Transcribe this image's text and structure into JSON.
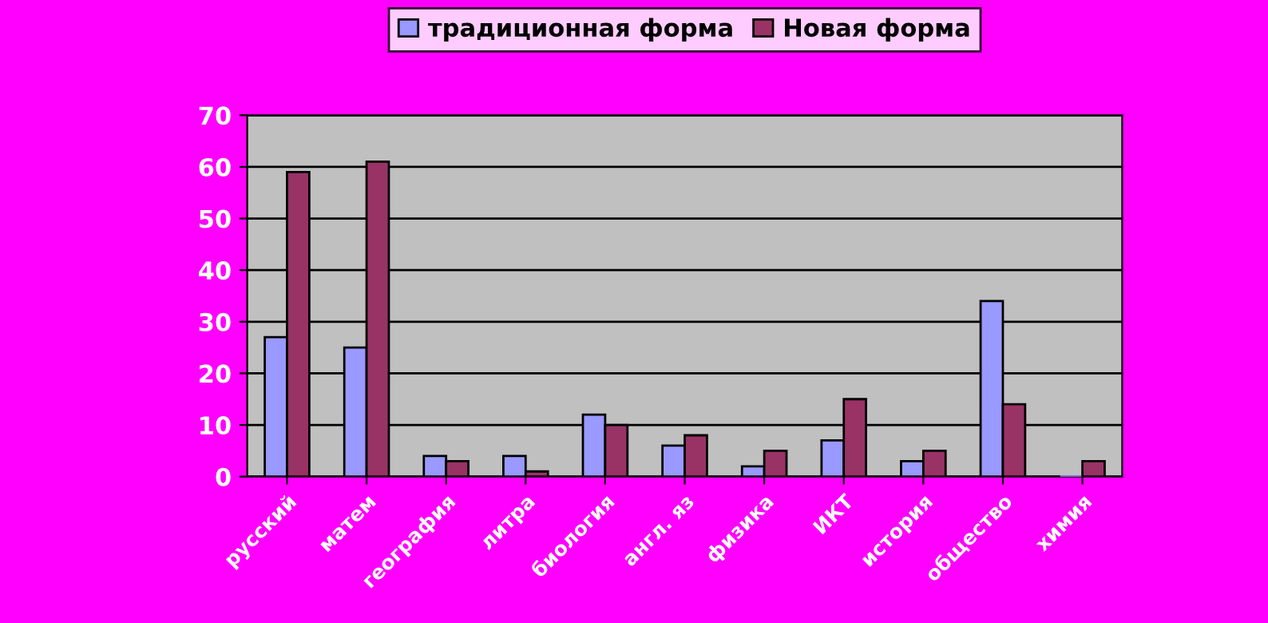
{
  "chart_data": {
    "type": "bar",
    "categories": [
      "русский",
      "матем",
      "география",
      "литра",
      "биология",
      "англ. яз",
      "физика",
      "ИКТ",
      "история",
      "общество",
      "химия"
    ],
    "series": [
      {
        "name": "традиционная форма",
        "color": "#9999ff",
        "values": [
          27,
          25,
          4,
          4,
          12,
          6,
          2,
          7,
          3,
          34,
          0
        ]
      },
      {
        "name": "Новая форма",
        "color": "#993366",
        "values": [
          59,
          61,
          3,
          1,
          10,
          8,
          5,
          15,
          5,
          14,
          3
        ]
      }
    ],
    "ylim": [
      0,
      70
    ],
    "yticks": [
      0,
      10,
      20,
      30,
      40,
      50,
      60,
      70
    ],
    "grid": "y",
    "legend": "top"
  }
}
